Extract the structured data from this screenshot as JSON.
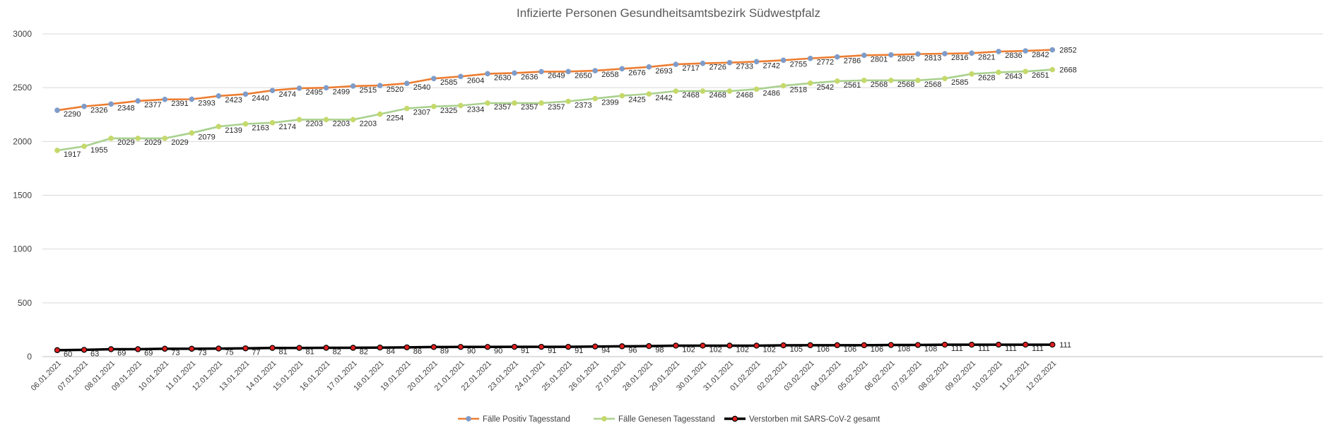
{
  "chart_data": {
    "type": "line",
    "title": "Infizierte Personen Gesundheitsamtsbezirk Südwestpfalz",
    "xlabel": "",
    "ylabel": "",
    "ylim": [
      0,
      3000
    ],
    "yticks": [
      "0",
      "500",
      "1000",
      "1500",
      "2000",
      "2500",
      "3000"
    ],
    "grid": true,
    "legend_position": "bottom",
    "categories": [
      "06.01.2021",
      "07.01.2021",
      "08.01.2021",
      "09.01.2021",
      "10.01.2021",
      "11.01.2021",
      "12.01.2021",
      "13.01.2021",
      "14.01.2021",
      "15.01.2021",
      "16.01.2021",
      "17.01.2021",
      "18.01.2021",
      "19.01.2021",
      "20.01.2021",
      "21.01.2021",
      "22.01.2021",
      "23.01.2021",
      "24.01.2021",
      "25.01.2021",
      "26.01.2021",
      "27.01.2021",
      "28.01.2021",
      "29.01.2021",
      "30.01.2021",
      "31.01.2021",
      "01.02.2021",
      "02.02.2021",
      "03.02.2021",
      "04.02.2021",
      "05.02.2021",
      "06.02.2021",
      "07.02.2021",
      "08.02.2021",
      "09.02.2021",
      "10.02.2021",
      "11.02.2021",
      "12.02.2021"
    ],
    "series": [
      {
        "name": "Fälle Positiv Tagesstand",
        "line_color": "#ED7D31",
        "marker_color": "#7F9CC9",
        "values": [
          2290,
          2326,
          2348,
          2377,
          2391,
          2393,
          2423,
          2440,
          2474,
          2495,
          2499,
          2515,
          2520,
          2540,
          2585,
          2604,
          2630,
          2636,
          2649,
          2650,
          2658,
          2676,
          2693,
          2717,
          2726,
          2733,
          2742,
          2755,
          2772,
          2786,
          2801,
          2805,
          2813,
          2816,
          2821,
          2836,
          2842,
          2852
        ]
      },
      {
        "name": "Fälle Genesen Tagesstand",
        "line_color": "#A9D18E",
        "marker_color": "#C5D96B",
        "values": [
          1917,
          1955,
          2029,
          2029,
          2029,
          2079,
          2139,
          2163,
          2174,
          2203,
          2203,
          2203,
          2254,
          2307,
          2325,
          2334,
          2357,
          2357,
          2357,
          2373,
          2399,
          2425,
          2442,
          2468,
          2468,
          2468,
          2486,
          2518,
          2542,
          2561,
          2568,
          2568,
          2568,
          2585,
          2628,
          2643,
          2651,
          2668
        ]
      },
      {
        "name": "Verstorben mit SARS-CoV-2 gesamt",
        "line_color": "#000000",
        "marker_color": "#E02020",
        "values": [
          60,
          63,
          69,
          69,
          73,
          73,
          75,
          77,
          81,
          81,
          82,
          82,
          84,
          86,
          89,
          90,
          90,
          91,
          91,
          91,
          94,
          96,
          98,
          102,
          102,
          102,
          102,
          105,
          106,
          106,
          106,
          108,
          108,
          111,
          111,
          111,
          111,
          111
        ]
      }
    ]
  }
}
